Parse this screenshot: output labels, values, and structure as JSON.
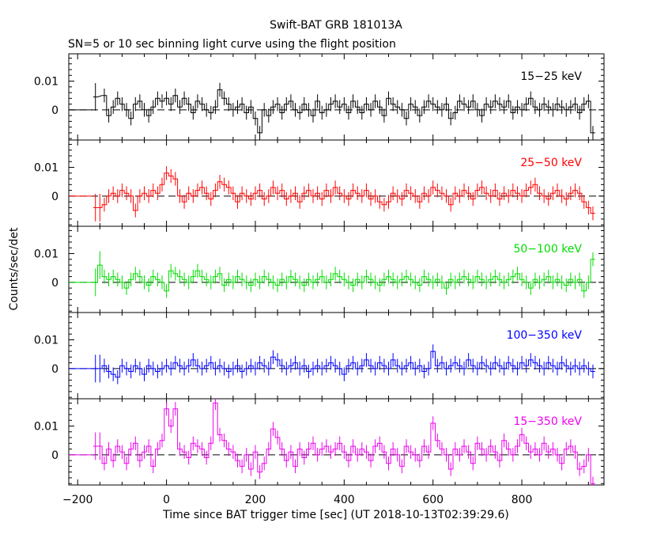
{
  "chart_data": {
    "type": "line",
    "title": "Swift-BAT GRB 181013A",
    "subtitle": "SN=5 or 10 sec binning light curve using the flight position",
    "xlabel": "Time since BAT trigger time [sec] (UT 2018-10-13T02:39:29.6)",
    "ylabel": "Counts/sec/det",
    "xlim": [
      -220,
      985
    ],
    "ylim": [
      -0.0105,
      0.0195
    ],
    "x_ticks": [
      -200,
      0,
      200,
      400,
      600,
      800
    ],
    "x_tick_labels": [
      "−200",
      "0",
      "200",
      "400",
      "600",
      "800"
    ],
    "y_ticks": [
      0,
      0.01
    ],
    "y_tick_labels": [
      "0",
      "0.01"
    ],
    "zero_line": "dashed",
    "grid": false,
    "series": [
      {
        "name": "15−25 keV",
        "color": "#000000",
        "x": [
          -160,
          -140,
          -130,
          -120,
          -110,
          -100,
          -90,
          -80,
          -70,
          -60,
          -50,
          -40,
          -30,
          -20,
          -10,
          0,
          10,
          20,
          30,
          40,
          50,
          60,
          70,
          80,
          90,
          100,
          110,
          120,
          130,
          140,
          150,
          160,
          170,
          180,
          190,
          200,
          210,
          220,
          230,
          240,
          250,
          260,
          270,
          280,
          290,
          300,
          310,
          320,
          330,
          340,
          350,
          360,
          370,
          380,
          390,
          400,
          410,
          420,
          430,
          440,
          450,
          460,
          470,
          480,
          490,
          500,
          510,
          520,
          530,
          540,
          550,
          560,
          570,
          580,
          590,
          600,
          610,
          620,
          630,
          640,
          650,
          660,
          670,
          680,
          690,
          700,
          710,
          720,
          730,
          740,
          750,
          760,
          770,
          780,
          790,
          800,
          810,
          820,
          830,
          840,
          850,
          860,
          870,
          880,
          890,
          900,
          910,
          920,
          930,
          940,
          950,
          960
        ],
        "y": [
          0.0045,
          0.005,
          -0.002,
          0.001,
          0.004,
          0.002,
          0.0,
          -0.003,
          0.002,
          0.003,
          0.0,
          -0.002,
          0.001,
          0.004,
          0.003,
          0.004,
          0.002,
          0.005,
          0.001,
          0.004,
          0.002,
          -0.001,
          0.003,
          0.002,
          0.0,
          -0.001,
          0.001,
          0.007,
          0.004,
          0.002,
          0.0,
          0.001,
          0.002,
          -0.001,
          0.001,
          -0.003,
          -0.008,
          0.0,
          -0.002,
          0.001,
          0.002,
          -0.001,
          0.002,
          0.003,
          0.0,
          -0.001,
          0.002,
          0.0,
          -0.002,
          0.003,
          -0.001,
          0.0,
          0.002,
          0.003,
          0.001,
          0.002,
          -0.001,
          0.003,
          0.001,
          -0.001,
          0.002,
          0.0,
          0.003,
          0.001,
          -0.002,
          0.004,
          0.002,
          0.001,
          0.0,
          -0.003,
          0.002,
          0.001,
          -0.002,
          0.001,
          0.003,
          0.002,
          0.001,
          0.0,
          0.002,
          -0.003,
          -0.001,
          0.003,
          0.002,
          0.001,
          0.003,
          0.0,
          -0.002,
          0.002,
          0.001,
          0.003,
          0.002,
          0.001,
          0.003,
          -0.001,
          0.001,
          0.0,
          0.002,
          0.004,
          0.001,
          0.0,
          0.002,
          0.001,
          0.0,
          0.002,
          0.001,
          0.0,
          0.001,
          0.002,
          -0.001,
          0.002,
          0.003,
          -0.008
        ],
        "label_color": "#000000"
      },
      {
        "name": "25−50 keV",
        "color": "#ff0000",
        "x": [
          -160,
          -150,
          -140,
          -130,
          -120,
          -110,
          -100,
          -90,
          -80,
          -70,
          -60,
          -50,
          -40,
          -30,
          -20,
          -10,
          0,
          10,
          20,
          30,
          40,
          50,
          60,
          70,
          80,
          90,
          100,
          110,
          120,
          130,
          140,
          150,
          160,
          170,
          180,
          190,
          200,
          210,
          220,
          230,
          240,
          250,
          260,
          270,
          280,
          290,
          300,
          310,
          320,
          330,
          340,
          350,
          360,
          370,
          380,
          390,
          400,
          410,
          420,
          430,
          440,
          450,
          460,
          470,
          480,
          490,
          500,
          510,
          520,
          530,
          540,
          550,
          560,
          570,
          580,
          590,
          600,
          610,
          620,
          630,
          640,
          650,
          660,
          670,
          680,
          690,
          700,
          710,
          720,
          730,
          740,
          750,
          760,
          770,
          780,
          790,
          800,
          810,
          820,
          830,
          840,
          850,
          860,
          870,
          880,
          890,
          900,
          910,
          920,
          930,
          940,
          950,
          960
        ],
        "y": [
          -0.004,
          -0.004,
          -0.003,
          0.0,
          0.001,
          0.0,
          0.002,
          0.001,
          0.0,
          -0.005,
          0.0,
          0.001,
          0.0,
          0.002,
          0.001,
          0.004,
          0.008,
          0.007,
          0.006,
          0.0,
          -0.002,
          0.001,
          0.0,
          0.002,
          0.003,
          0.001,
          -0.001,
          0.002,
          0.005,
          0.004,
          0.003,
          0.001,
          -0.002,
          0.001,
          0.0,
          -0.001,
          0.001,
          0.002,
          -0.001,
          0.0,
          0.003,
          0.001,
          0.002,
          -0.001,
          0.0,
          0.001,
          -0.002,
          0.001,
          0.002,
          0.0,
          0.001,
          -0.001,
          0.002,
          0.0,
          0.003,
          0.001,
          0.0,
          -0.001,
          0.002,
          0.001,
          0.0,
          0.002,
          -0.001,
          0.0,
          -0.002,
          -0.003,
          -0.002,
          0.001,
          0.0,
          -0.001,
          0.002,
          0.001,
          0.0,
          -0.002,
          0.001,
          0.0,
          0.003,
          0.002,
          0.001,
          0.0,
          -0.003,
          0.001,
          0.0,
          0.002,
          0.001,
          -0.001,
          0.002,
          0.003,
          0.001,
          0.0,
          0.002,
          -0.001,
          0.001,
          0.0,
          0.002,
          0.001,
          0.0,
          0.002,
          0.003,
          0.004,
          0.001,
          0.0,
          -0.001,
          0.001,
          0.002,
          0.0,
          -0.001,
          0.001,
          0.002,
          0.001,
          -0.002,
          -0.004,
          -0.006
        ],
        "label_color": "#ff0000"
      },
      {
        "name": "50−100 keV",
        "color": "#00dd00",
        "x": [
          -160,
          -150,
          -140,
          -130,
          -120,
          -110,
          -100,
          -90,
          -80,
          -70,
          -60,
          -50,
          -40,
          -30,
          -20,
          -10,
          0,
          10,
          20,
          30,
          40,
          50,
          60,
          70,
          80,
          90,
          100,
          110,
          120,
          130,
          140,
          150,
          160,
          170,
          180,
          190,
          200,
          210,
          220,
          230,
          240,
          250,
          260,
          270,
          280,
          290,
          300,
          310,
          320,
          330,
          340,
          350,
          360,
          370,
          380,
          390,
          400,
          410,
          420,
          430,
          440,
          450,
          460,
          470,
          480,
          490,
          500,
          510,
          520,
          530,
          540,
          550,
          560,
          570,
          580,
          590,
          600,
          610,
          620,
          630,
          640,
          650,
          660,
          670,
          680,
          690,
          700,
          710,
          720,
          730,
          740,
          750,
          760,
          770,
          780,
          790,
          800,
          810,
          820,
          830,
          840,
          850,
          860,
          870,
          880,
          890,
          900,
          910,
          920,
          930,
          940,
          950,
          960
        ],
        "y": [
          0.0,
          0.006,
          0.002,
          0.001,
          0.002,
          0.001,
          0.0,
          -0.002,
          0.001,
          0.003,
          0.002,
          0.0,
          -0.001,
          0.002,
          0.001,
          0.0,
          -0.003,
          0.004,
          0.003,
          0.002,
          0.001,
          0.0,
          0.002,
          0.004,
          0.002,
          0.001,
          0.0,
          0.002,
          0.003,
          -0.001,
          0.001,
          0.0,
          0.002,
          0.001,
          0.0,
          -0.001,
          0.001,
          0.0,
          0.002,
          0.001,
          0.0,
          -0.001,
          0.001,
          0.0,
          0.002,
          0.001,
          0.0,
          -0.001,
          0.001,
          0.0,
          0.001,
          0.002,
          0.0,
          0.001,
          0.003,
          0.002,
          0.001,
          0.0,
          -0.001,
          0.001,
          0.0,
          0.002,
          0.001,
          0.0,
          -0.001,
          0.001,
          0.002,
          0.001,
          0.0,
          0.001,
          0.002,
          0.001,
          0.0,
          -0.001,
          0.002,
          0.001,
          0.0,
          0.001,
          0.0,
          -0.002,
          0.001,
          0.0,
          0.001,
          0.002,
          0.001,
          0.0,
          0.002,
          0.001,
          0.0,
          0.001,
          0.002,
          0.001,
          0.0,
          0.001,
          0.002,
          0.003,
          0.001,
          0.0,
          -0.002,
          0.001,
          0.0,
          0.001,
          0.002,
          0.0,
          0.001,
          0.0,
          -0.001,
          0.001,
          0.0,
          0.001,
          -0.003,
          0.0,
          0.008
        ],
        "label_color": "#00dd00"
      },
      {
        "name": "100−350 keV",
        "color": "#0000ff",
        "x": [
          -160,
          -150,
          -140,
          -130,
          -120,
          -110,
          -100,
          -90,
          -80,
          -70,
          -60,
          -50,
          -40,
          -30,
          -20,
          -10,
          0,
          10,
          20,
          30,
          40,
          50,
          60,
          70,
          80,
          90,
          100,
          110,
          120,
          130,
          140,
          150,
          160,
          170,
          180,
          190,
          200,
          210,
          220,
          230,
          240,
          250,
          260,
          270,
          280,
          290,
          300,
          310,
          320,
          330,
          340,
          350,
          360,
          370,
          380,
          390,
          400,
          410,
          420,
          430,
          440,
          450,
          460,
          470,
          480,
          490,
          500,
          510,
          520,
          530,
          540,
          550,
          560,
          570,
          580,
          590,
          600,
          610,
          620,
          630,
          640,
          650,
          660,
          670,
          680,
          690,
          700,
          710,
          720,
          730,
          740,
          750,
          760,
          770,
          780,
          790,
          800,
          810,
          820,
          830,
          840,
          850,
          860,
          870,
          880,
          890,
          900,
          910,
          920,
          930,
          940,
          950,
          960
        ],
        "y": [
          0.0,
          0.0,
          0.001,
          -0.001,
          -0.002,
          -0.003,
          0.001,
          0.0,
          -0.001,
          0.001,
          0.0,
          -0.002,
          0.001,
          0.0,
          -0.001,
          0.0,
          0.001,
          0.0,
          0.002,
          0.001,
          0.0,
          0.001,
          0.003,
          0.001,
          0.0,
          0.001,
          0.002,
          0.0,
          0.001,
          0.0,
          -0.001,
          0.0,
          0.001,
          -0.001,
          0.0,
          0.001,
          0.0,
          0.002,
          0.001,
          0.0,
          0.004,
          0.003,
          0.001,
          0.0,
          0.001,
          0.002,
          0.0,
          0.001,
          -0.001,
          0.0,
          0.001,
          0.0,
          0.001,
          0.002,
          0.001,
          0.0,
          -0.002,
          0.001,
          0.002,
          0.0,
          0.001,
          0.003,
          0.001,
          0.0,
          0.002,
          0.001,
          0.0,
          0.003,
          0.001,
          0.0,
          0.001,
          0.002,
          0.0,
          0.001,
          -0.001,
          0.0,
          0.006,
          0.001,
          0.002,
          0.0,
          0.001,
          0.002,
          0.001,
          0.0,
          0.003,
          0.001,
          0.0,
          0.002,
          0.001,
          0.0,
          0.002,
          0.001,
          0.0,
          0.002,
          0.001,
          0.0,
          0.002,
          0.001,
          0.003,
          0.002,
          0.001,
          0.0,
          0.002,
          0.001,
          0.0,
          0.002,
          0.001,
          0.0,
          0.001,
          0.0,
          0.001,
          0.0,
          -0.001
        ],
        "label_color": "#0000ff"
      },
      {
        "name": "15−350 keV",
        "color": "#ee00ee",
        "x": [
          -160,
          -150,
          -140,
          -130,
          -120,
          -110,
          -100,
          -90,
          -80,
          -70,
          -60,
          -50,
          -40,
          -30,
          -20,
          -10,
          0,
          10,
          20,
          30,
          40,
          50,
          60,
          70,
          80,
          90,
          100,
          110,
          120,
          130,
          140,
          150,
          160,
          170,
          180,
          190,
          200,
          210,
          220,
          230,
          240,
          250,
          260,
          270,
          280,
          290,
          300,
          310,
          320,
          330,
          340,
          350,
          360,
          370,
          380,
          390,
          400,
          410,
          420,
          430,
          440,
          450,
          460,
          470,
          480,
          490,
          500,
          510,
          520,
          530,
          540,
          550,
          560,
          570,
          580,
          590,
          600,
          610,
          620,
          630,
          640,
          650,
          660,
          670,
          680,
          690,
          700,
          710,
          720,
          730,
          740,
          750,
          760,
          770,
          780,
          790,
          800,
          810,
          820,
          830,
          840,
          850,
          860,
          870,
          880,
          890,
          900,
          910,
          920,
          930,
          940,
          950,
          960
        ],
        "y": [
          0.003,
          0.003,
          -0.003,
          0.002,
          -0.002,
          0.003,
          0.001,
          -0.003,
          0.002,
          0.004,
          -0.002,
          0.001,
          0.003,
          -0.004,
          0.002,
          0.005,
          0.016,
          0.01,
          0.016,
          0.002,
          0.001,
          -0.001,
          0.004,
          0.003,
          0.002,
          -0.001,
          0.004,
          0.018,
          0.007,
          0.005,
          0.002,
          0.001,
          -0.002,
          -0.004,
          0.0,
          -0.005,
          0.001,
          -0.006,
          -0.003,
          0.002,
          0.009,
          0.006,
          0.002,
          -0.002,
          0.001,
          -0.004,
          0.002,
          -0.001,
          0.002,
          0.004,
          0.0,
          0.002,
          0.003,
          0.001,
          0.002,
          0.004,
          0.001,
          -0.002,
          0.003,
          0.0,
          0.002,
          0.001,
          -0.002,
          0.003,
          0.004,
          0.001,
          -0.003,
          0.002,
          0.0,
          -0.004,
          0.003,
          0.001,
          0.0,
          -0.002,
          0.003,
          0.001,
          0.011,
          0.005,
          0.002,
          0.0,
          -0.005,
          0.002,
          0.0,
          0.003,
          0.001,
          -0.003,
          0.004,
          0.002,
          0.0,
          0.003,
          0.001,
          -0.002,
          0.005,
          0.002,
          0.0,
          0.003,
          0.007,
          0.004,
          0.001,
          0.002,
          0.0,
          0.004,
          0.001,
          0.002,
          0.0,
          -0.003,
          0.002,
          0.003,
          0.001,
          -0.005,
          -0.004,
          0.0,
          -0.01
        ],
        "label_color": "#ee00ee"
      }
    ]
  }
}
